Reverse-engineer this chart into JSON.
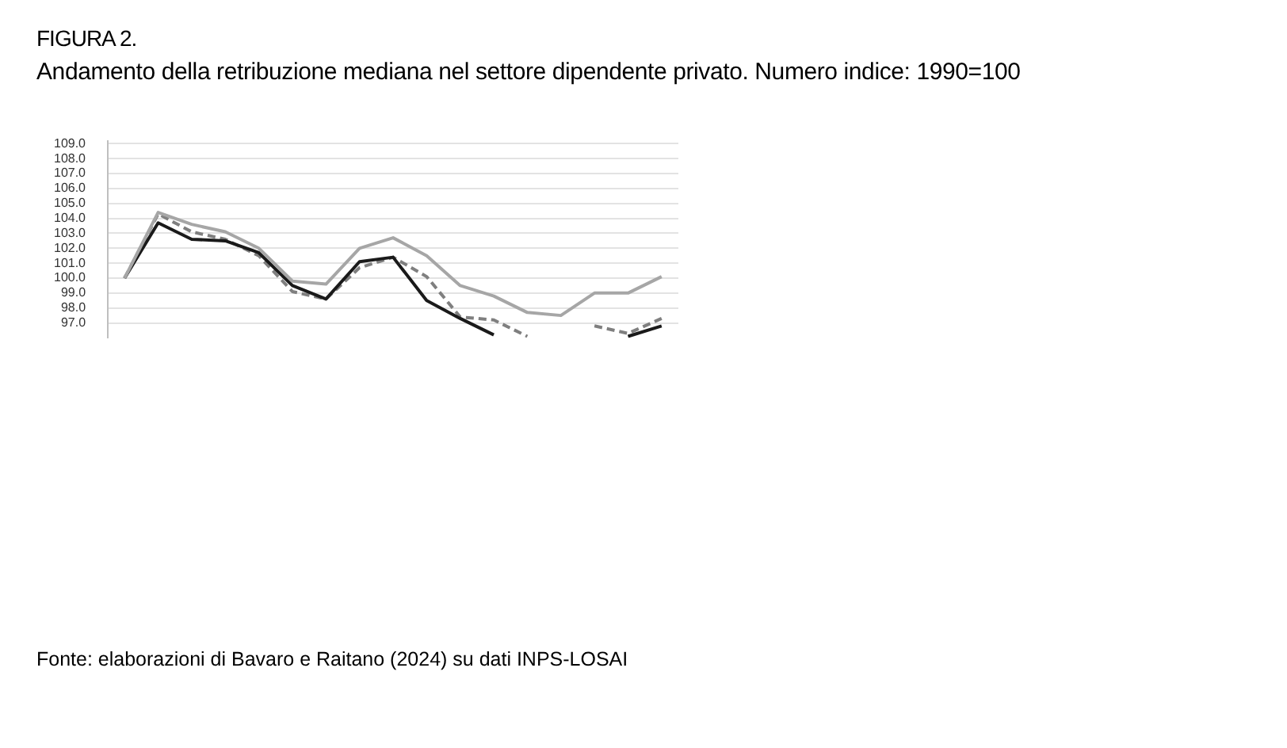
{
  "chart_data": {
    "type": "line",
    "title": "FIGURA 2.",
    "subtitle": "Andamento della retribuzione mediana nel settore dipendente privato. Numero indice: 1990=100",
    "categories": [
      null,
      null,
      null,
      null,
      null,
      null,
      null,
      null,
      null,
      null,
      null,
      null,
      null,
      null,
      null,
      null,
      null
    ],
    "series": [
      {
        "color": "#a6a6a6",
        "line_style": "solid",
        "values": [
          100,
          104.4,
          103.6,
          103.1,
          102.0,
          99.8,
          99.6,
          102.0,
          102.7,
          101.5,
          99.5,
          98.8,
          97.7,
          97.5,
          99.0,
          99.0,
          100.1
        ]
      },
      {
        "color": "#1a1a1a",
        "line_style": "solid",
        "values": [
          100,
          103.7,
          102.6,
          102.5,
          101.7,
          99.5,
          98.6,
          101.1,
          101.4,
          98.5,
          97.3,
          96.2,
          null,
          null,
          null,
          96.1,
          96.8
        ]
      },
      {
        "color": "#7f7f7f",
        "line_style": "dashed",
        "values": [
          100,
          104.3,
          103.1,
          102.6,
          101.5,
          99.1,
          98.6,
          100.7,
          101.4,
          100.1,
          97.4,
          97.2,
          96.1,
          null,
          96.8,
          96.3,
          97.3
        ]
      }
    ],
    "ylim": [
      96,
      109.2
    ],
    "yticks": [
      {
        "value": 97,
        "label": "97.0"
      },
      {
        "value": 98,
        "label": "98.0"
      },
      {
        "value": 99,
        "label": "99.0"
      },
      {
        "value": 100,
        "label": "100.0"
      },
      {
        "value": 101,
        "label": "101.0"
      },
      {
        "value": 102,
        "label": "102.0"
      },
      {
        "value": 103,
        "label": "103.0"
      },
      {
        "value": 104,
        "label": "104.0"
      },
      {
        "value": 105,
        "label": "105.0"
      },
      {
        "value": 106,
        "label": "106.0"
      },
      {
        "value": 107,
        "label": "107.0"
      },
      {
        "value": 108,
        "label": "108.0"
      },
      {
        "value": 109,
        "label": "109.0"
      }
    ],
    "grid": "y",
    "legend": false,
    "marker": "none",
    "tick_labels": "y",
    "annotations": [
      "Fonte: elaborazioni di Bavaro e Raitano (2024) su dati INPS-LOSAI"
    ]
  }
}
